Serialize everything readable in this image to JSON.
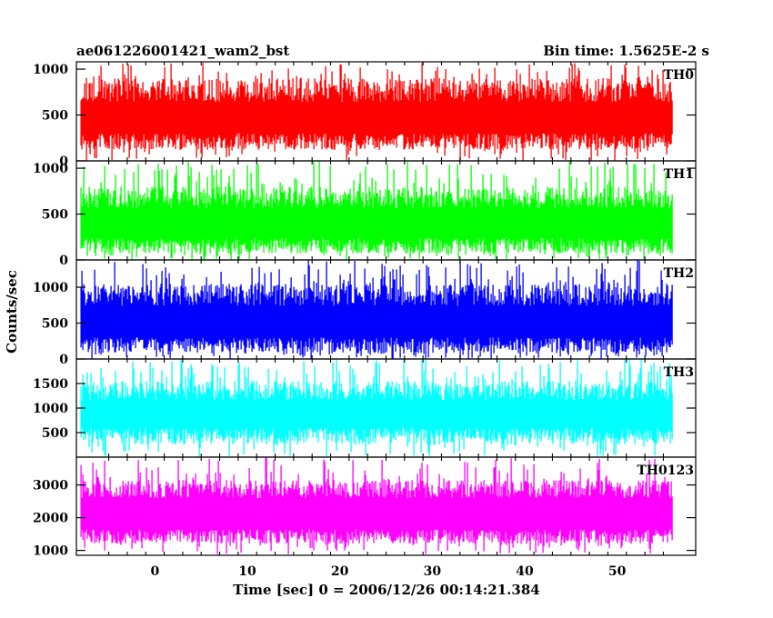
{
  "header": {
    "left_title": "ae061226001421_wam2_bst",
    "right_title": "Bin time: 1.5625E-2 s"
  },
  "chart_data": {
    "type": "line",
    "xlabel": "Time [sec] 0 = 2006/12/26 00:14:21.384",
    "ylabel": "Counts/sec",
    "xlim": [
      -8.5,
      58.5
    ],
    "x_range": [
      -8,
      56
    ],
    "x_ticks": [
      0,
      10,
      20,
      30,
      40,
      50
    ],
    "x_tick_labels": [
      "0",
      "10",
      "20",
      "30",
      "40",
      "50"
    ],
    "panels": [
      {
        "name": "TH0",
        "color": "#ff0000",
        "ylim": [
          0,
          1080
        ],
        "ticks": [
          0,
          500,
          1000
        ],
        "tick_labels": [
          "0",
          "500",
          "1000"
        ],
        "band_low": [
          120,
          300
        ],
        "band_high": [
          640,
          900
        ],
        "spike_low": 0,
        "spike_high": 1080
      },
      {
        "name": "TH1",
        "color": "#00ff00",
        "ylim": [
          0,
          1080
        ],
        "ticks": [
          0,
          500,
          1000
        ],
        "tick_labels": [
          "0",
          "500",
          "1000"
        ],
        "band_low": [
          70,
          240
        ],
        "band_high": [
          560,
          800
        ],
        "spike_low": 0,
        "spike_high": 1080
      },
      {
        "name": "TH2",
        "color": "#0000ff",
        "ylim": [
          0,
          1380
        ],
        "ticks": [
          0,
          500,
          1000
        ],
        "tick_labels": [
          "0",
          "500",
          "1000"
        ],
        "band_low": [
          80,
          300
        ],
        "band_high": [
          740,
          1050
        ],
        "spike_low": 0,
        "spike_high": 1380
      },
      {
        "name": "TH3",
        "color": "#00ffff",
        "ylim": [
          0,
          2000
        ],
        "ticks": [
          500,
          1000,
          1500
        ],
        "tick_labels": [
          "500",
          "1000",
          "1500"
        ],
        "band_low": [
          260,
          600
        ],
        "band_high": [
          1150,
          1550
        ],
        "spike_low": 0,
        "spike_high": 2000
      },
      {
        "name": "TH0123",
        "color": "#ff00ff",
        "ylim": [
          850,
          3850
        ],
        "ticks": [
          1000,
          2000,
          3000
        ],
        "tick_labels": [
          "1000",
          "2000",
          "3000"
        ],
        "band_low": [
          1200,
          1650
        ],
        "band_high": [
          2600,
          3150
        ],
        "spike_low": 880,
        "spike_high": 3850
      }
    ]
  }
}
